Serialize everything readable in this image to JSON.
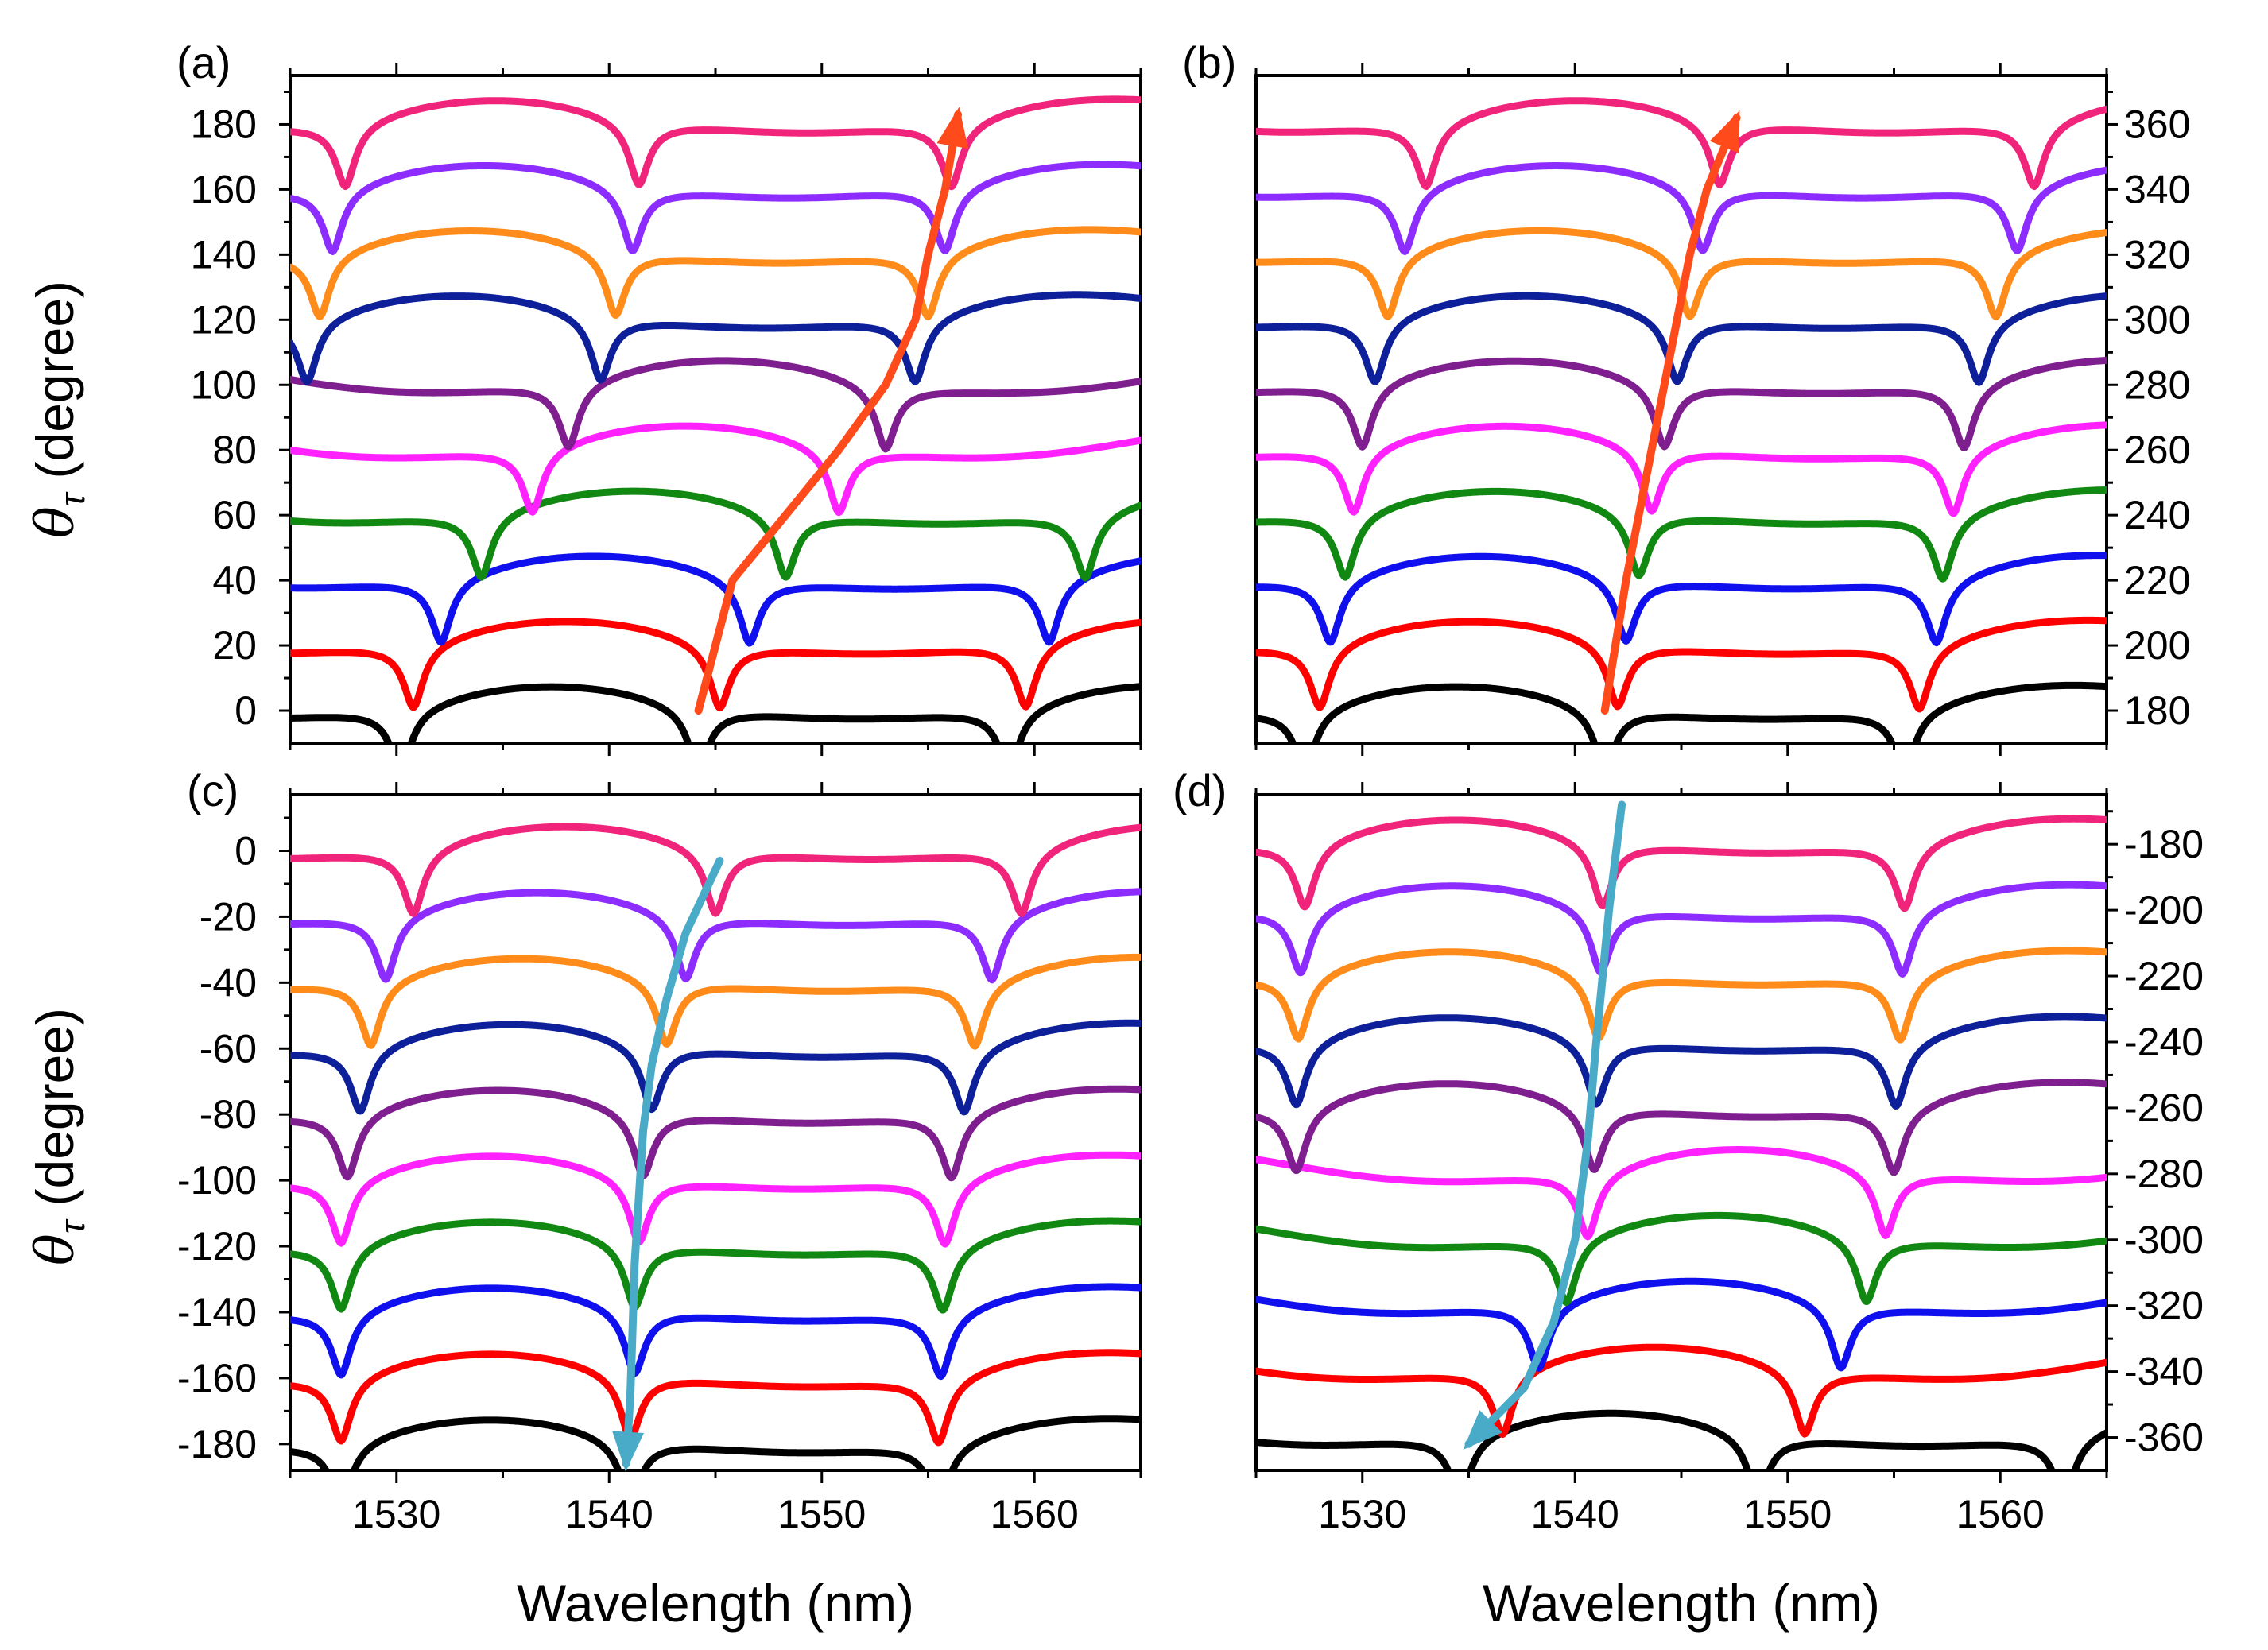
{
  "figure": {
    "xlabel": "Wavelength (nm)",
    "ylabel_symbol": "θ",
    "ylabel_sub": "τ",
    "ylabel_unit": " (degree)"
  },
  "chart_data": [
    {
      "type": "line",
      "panel": "(a)",
      "xlim": [
        1525,
        1565
      ],
      "xticks": [
        "1530",
        "1540",
        "1550",
        "1560"
      ],
      "ylim": [
        -10,
        195
      ],
      "yticks": [
        "0",
        "20",
        "40",
        "60",
        "80",
        "100",
        "120",
        "140",
        "160",
        "180"
      ],
      "yaxis_side": "left",
      "series": [
        {
          "name": "0",
          "color": "#000000",
          "offset": 0,
          "dips": [
            1530.2,
            1544.2,
            1558.8
          ]
        },
        {
          "name": "20",
          "color": "#ff0000",
          "offset": 20,
          "dips": [
            1530.8,
            1545.2,
            1559.6
          ]
        },
        {
          "name": "40",
          "color": "#1010ee",
          "offset": 40,
          "dips": [
            1532.1,
            1546.6,
            1560.7
          ]
        },
        {
          "name": "60",
          "color": "#118811",
          "offset": 60,
          "dips": [
            1534.0,
            1548.3,
            1562.4
          ]
        },
        {
          "name": "80",
          "color": "#ff22ff",
          "offset": 80,
          "dips": [
            1536.4,
            1550.8
          ]
        },
        {
          "name": "100",
          "color": "#7f1f8f",
          "offset": 100,
          "dips": [
            1538.1,
            1553.0
          ]
        },
        {
          "name": "120",
          "color": "#0d1f99",
          "offset": 120,
          "dips": [
            1525.8,
            1539.6,
            1554.4
          ]
        },
        {
          "name": "140",
          "color": "#ff8c1a",
          "offset": 140,
          "dips": [
            1526.4,
            1540.3,
            1555.0
          ]
        },
        {
          "name": "160",
          "color": "#8c2cff",
          "offset": 160,
          "dips": [
            1527.0,
            1541.1,
            1555.8
          ]
        },
        {
          "name": "180",
          "color": "#f0247a",
          "offset": 180,
          "dips": [
            1527.6,
            1541.4,
            1556.1
          ]
        }
      ],
      "trend_arrow": {
        "color": "#ff4a1c",
        "points": [
          [
            1544.2,
            0
          ],
          [
            1545.8,
            40
          ],
          [
            1548.3,
            60
          ],
          [
            1550.8,
            80
          ],
          [
            1553.0,
            100
          ],
          [
            1554.4,
            120
          ],
          [
            1555.0,
            140
          ],
          [
            1555.8,
            160
          ],
          [
            1556.4,
            183
          ]
        ]
      }
    },
    {
      "type": "line",
      "panel": "(b)",
      "xlim": [
        1525,
        1565
      ],
      "xticks": [
        "1530",
        "1540",
        "1550",
        "1560"
      ],
      "ylim": [
        170,
        375
      ],
      "yticks": [
        "180",
        "200",
        "220",
        "240",
        "260",
        "280",
        "300",
        "320",
        "340",
        "360"
      ],
      "yaxis_side": "right",
      "series": [
        {
          "name": "180",
          "color": "#000000",
          "offset": 180,
          "dips": [
            1527.3,
            1541.4,
            1555.5
          ]
        },
        {
          "name": "200",
          "color": "#ff0000",
          "offset": 200,
          "dips": [
            1528.0,
            1542.0,
            1556.2
          ]
        },
        {
          "name": "220",
          "color": "#1010ee",
          "offset": 220,
          "dips": [
            1528.5,
            1542.4,
            1557.0
          ]
        },
        {
          "name": "240",
          "color": "#118811",
          "offset": 240,
          "dips": [
            1529.2,
            1543.0,
            1557.3
          ]
        },
        {
          "name": "260",
          "color": "#ff22ff",
          "offset": 260,
          "dips": [
            1529.6,
            1543.6,
            1557.8
          ]
        },
        {
          "name": "280",
          "color": "#7f1f8f",
          "offset": 280,
          "dips": [
            1530.0,
            1544.2,
            1558.3
          ]
        },
        {
          "name": "300",
          "color": "#0d1f99",
          "offset": 300,
          "dips": [
            1530.6,
            1544.8,
            1559.0
          ]
        },
        {
          "name": "320",
          "color": "#ff8c1a",
          "offset": 320,
          "dips": [
            1531.2,
            1545.4,
            1559.8
          ]
        },
        {
          "name": "340",
          "color": "#8c2cff",
          "offset": 340,
          "dips": [
            1532.0,
            1546.0,
            1560.8
          ]
        },
        {
          "name": "360",
          "color": "#f0247a",
          "offset": 360,
          "dips": [
            1533.0,
            1546.8,
            1561.6
          ]
        }
      ],
      "trend_arrow": {
        "color": "#ff4a1c",
        "points": [
          [
            1541.4,
            180
          ],
          [
            1542.4,
            220
          ],
          [
            1543.0,
            240
          ],
          [
            1543.6,
            260
          ],
          [
            1544.2,
            280
          ],
          [
            1544.8,
            300
          ],
          [
            1545.4,
            320
          ],
          [
            1546.2,
            340
          ],
          [
            1547.6,
            362
          ]
        ]
      }
    },
    {
      "type": "line",
      "panel": "(c)",
      "xlim": [
        1525,
        1565
      ],
      "xticks": [
        "1530",
        "1540",
        "1550",
        "1560"
      ],
      "ylim": [
        -188,
        17
      ],
      "yticks": [
        "0",
        "-20",
        "-40",
        "-60",
        "-80",
        "-100",
        "-120",
        "-140",
        "-160",
        "-180"
      ],
      "yaxis_side": "left",
      "series": [
        {
          "name": "-180",
          "color": "#000000",
          "offset": -180,
          "dips": [
            1527.4,
            1541.0,
            1555.5
          ]
        },
        {
          "name": "-160",
          "color": "#ff0000",
          "offset": -160,
          "dips": [
            1527.4,
            1541.0,
            1555.5
          ]
        },
        {
          "name": "-140",
          "color": "#1010ee",
          "offset": -140,
          "dips": [
            1527.4,
            1541.2,
            1555.6
          ]
        },
        {
          "name": "-120",
          "color": "#118811",
          "offset": -120,
          "dips": [
            1527.4,
            1541.2,
            1555.7
          ]
        },
        {
          "name": "-100",
          "color": "#ff22ff",
          "offset": -100,
          "dips": [
            1527.4,
            1541.4,
            1555.8
          ]
        },
        {
          "name": "-80",
          "color": "#7f1f8f",
          "offset": -80,
          "dips": [
            1527.7,
            1541.6,
            1556.1
          ]
        },
        {
          "name": "-60",
          "color": "#0d1f99",
          "offset": -60,
          "dips": [
            1528.3,
            1542.0,
            1556.7
          ]
        },
        {
          "name": "-40",
          "color": "#ff8c1a",
          "offset": -40,
          "dips": [
            1528.8,
            1542.7,
            1557.2
          ]
        },
        {
          "name": "-20",
          "color": "#8c2cff",
          "offset": -20,
          "dips": [
            1529.5,
            1543.6,
            1558.0
          ]
        },
        {
          "name": "0",
          "color": "#f0247a",
          "offset": 0,
          "dips": [
            1530.8,
            1545.0,
            1559.4
          ]
        }
      ],
      "trend_arrow": {
        "color": "#4aabc8",
        "points": [
          [
            1545.2,
            -3
          ],
          [
            1543.6,
            -25
          ],
          [
            1542.7,
            -45
          ],
          [
            1542.0,
            -65
          ],
          [
            1541.6,
            -85
          ],
          [
            1541.4,
            -105
          ],
          [
            1541.2,
            -125
          ],
          [
            1541.1,
            -145
          ],
          [
            1541.0,
            -165
          ],
          [
            1540.8,
            -186
          ]
        ]
      }
    },
    {
      "type": "line",
      "panel": "(d)",
      "xlim": [
        1525,
        1565
      ],
      "xticks": [
        "1530",
        "1540",
        "1550",
        "1560"
      ],
      "ylim": [
        -370,
        -165
      ],
      "yticks": [
        "-180",
        "-200",
        "-220",
        "-240",
        "-260",
        "-280",
        "-300",
        "-320",
        "-340",
        "-360"
      ],
      "yaxis_side": "right",
      "series": [
        {
          "name": "-360",
          "color": "#000000",
          "offset": -360,
          "dips": [
            1534.6,
            1548.6,
            1563.0
          ]
        },
        {
          "name": "-340",
          "color": "#ff0000",
          "offset": -340,
          "dips": [
            1536.6,
            1550.8
          ]
        },
        {
          "name": "-320",
          "color": "#1010ee",
          "offset": -320,
          "dips": [
            1538.3,
            1552.5
          ]
        },
        {
          "name": "-300",
          "color": "#118811",
          "offset": -300,
          "dips": [
            1539.6,
            1553.7
          ]
        },
        {
          "name": "-280",
          "color": "#ff22ff",
          "offset": -280,
          "dips": [
            1540.6,
            1554.6
          ]
        },
        {
          "name": "-260",
          "color": "#7f1f8f",
          "offset": -260,
          "dips": [
            1526.9,
            1540.9,
            1555.0
          ]
        },
        {
          "name": "-240",
          "color": "#0d1f99",
          "offset": -240,
          "dips": [
            1526.9,
            1541.0,
            1555.1
          ]
        },
        {
          "name": "-220",
          "color": "#ff8c1a",
          "offset": -220,
          "dips": [
            1527.0,
            1541.1,
            1555.3
          ]
        },
        {
          "name": "-200",
          "color": "#8c2cff",
          "offset": -200,
          "dips": [
            1527.1,
            1541.2,
            1555.4
          ]
        },
        {
          "name": "-180",
          "color": "#f0247a",
          "offset": -180,
          "dips": [
            1527.3,
            1541.3,
            1555.5
          ]
        }
      ],
      "trend_arrow": {
        "color": "#4aabc8",
        "points": [
          [
            1542.2,
            -168
          ],
          [
            1541.6,
            -200
          ],
          [
            1541.0,
            -240
          ],
          [
            1540.6,
            -270
          ],
          [
            1540.0,
            -300
          ],
          [
            1539.0,
            -325
          ],
          [
            1537.6,
            -345
          ],
          [
            1535.0,
            -362
          ]
        ]
      }
    }
  ]
}
